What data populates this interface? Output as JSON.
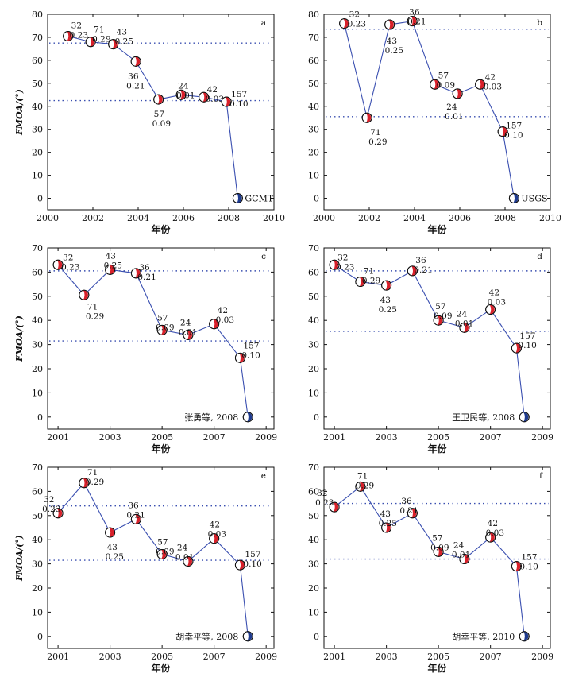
{
  "chart_data": [
    {
      "type": "line",
      "panel_label": "a",
      "source_label": "GCMT",
      "ylabel": "FMOA/(°)",
      "xlabel": "年份",
      "xlim": [
        2000,
        2010
      ],
      "ylim": [
        -5,
        80
      ],
      "xticks": [
        "2000",
        "2002",
        "2004",
        "2006",
        "2008",
        "2010"
      ],
      "yticks": [
        "0",
        "10",
        "20",
        "30",
        "40",
        "50",
        "60",
        "70",
        "80"
      ],
      "x": [
        2000.9,
        2001.9,
        2002.9,
        2003.9,
        2004.9,
        2005.9,
        2006.9,
        2007.9,
        2008.4
      ],
      "y": [
        70.5,
        68.0,
        67.0,
        59.5,
        43.0,
        45.0,
        44.0,
        42.0,
        0
      ],
      "labels_top": [
        "32",
        "71",
        "43",
        "36",
        "57",
        "24",
        "42",
        "157",
        ""
      ],
      "labels_bottom": [
        "0.23",
        "0.29",
        "0.25",
        "0.21",
        "0.09",
        "0.01",
        "0.03",
        "0.10",
        ""
      ],
      "hlines": [
        67.5,
        42.5
      ]
    },
    {
      "type": "line",
      "panel_label": "b",
      "source_label": "USGS",
      "ylabel": "",
      "xlabel": "年份",
      "xlim": [
        2000,
        2010
      ],
      "ylim": [
        -5,
        80
      ],
      "xticks": [
        "2000",
        "2002",
        "2004",
        "2006",
        "2008",
        "2010"
      ],
      "yticks": [
        "0",
        "10",
        "20",
        "30",
        "40",
        "50",
        "60",
        "70",
        "80"
      ],
      "x": [
        2000.9,
        2001.9,
        2002.9,
        2003.9,
        2004.9,
        2005.9,
        2006.9,
        2007.9,
        2008.4
      ],
      "y": [
        76.0,
        35.0,
        75.5,
        77.0,
        49.5,
        45.5,
        49.5,
        29.0,
        0
      ],
      "labels_top": [
        "32",
        "71",
        "43",
        "36",
        "57",
        "24",
        "42",
        "157",
        ""
      ],
      "labels_bottom": [
        "0.23",
        "0.29",
        "0.25",
        "0.21",
        "0.09",
        "0.01",
        "0.03",
        "0.10",
        ""
      ],
      "hlines": [
        73.5,
        35.5
      ]
    },
    {
      "type": "line",
      "panel_label": "c",
      "source_label": "张勇等, 2008",
      "ylabel": "FMOA/(°)",
      "xlabel": "年份",
      "xlim": [
        2000.6,
        2009.3
      ],
      "ylim": [
        -5,
        70
      ],
      "xticks": [
        "2001",
        "2003",
        "2005",
        "2007",
        "2009"
      ],
      "yticks": [
        "0",
        "10",
        "20",
        "30",
        "40",
        "50",
        "60",
        "70"
      ],
      "x": [
        2001,
        2002,
        2003,
        2004,
        2005,
        2006,
        2007,
        2008,
        2008.3
      ],
      "y": [
        63.0,
        50.5,
        61.0,
        59.5,
        36.0,
        34.0,
        38.5,
        24.5,
        0
      ],
      "labels_top": [
        "32",
        "71",
        "43",
        "36",
        "57",
        "24",
        "42",
        "157",
        ""
      ],
      "labels_bottom": [
        "0.23",
        "0.29",
        "0.25",
        "0.21",
        "0.09",
        "0.01",
        "0.03",
        "0.10",
        ""
      ],
      "hlines": [
        60.5,
        31.5
      ]
    },
    {
      "type": "line",
      "panel_label": "d",
      "source_label": "王卫民等, 2008",
      "ylabel": "",
      "xlabel": "年份",
      "xlim": [
        2000.6,
        2009.3
      ],
      "ylim": [
        -5,
        70
      ],
      "xticks": [
        "2001",
        "2003",
        "2005",
        "2007",
        "2009"
      ],
      "yticks": [
        "0",
        "10",
        "20",
        "30",
        "40",
        "50",
        "60",
        "70"
      ],
      "x": [
        2001,
        2002,
        2003,
        2004,
        2005,
        2006,
        2007,
        2008,
        2008.3
      ],
      "y": [
        63.0,
        56.0,
        54.5,
        60.5,
        40.0,
        37.0,
        44.5,
        28.5,
        0
      ],
      "labels_top": [
        "32",
        "71",
        "43",
        "36",
        "57",
        "24",
        "42",
        "157",
        ""
      ],
      "labels_bottom": [
        "0.23",
        "0.29",
        "0.25",
        "0.21",
        "0.09",
        "0.01",
        "0.03",
        "0.10",
        ""
      ],
      "hlines": [
        60.5,
        35.5
      ]
    },
    {
      "type": "line",
      "panel_label": "e",
      "source_label": "胡幸平等, 2008",
      "ylabel": "FMOA/(°)",
      "xlabel": "年份",
      "xlim": [
        2000.6,
        2009.3
      ],
      "ylim": [
        -5,
        70
      ],
      "xticks": [
        "2001",
        "2003",
        "2005",
        "2007",
        "2009"
      ],
      "yticks": [
        "0",
        "10",
        "20",
        "30",
        "40",
        "50",
        "60",
        "70"
      ],
      "x": [
        2001,
        2002,
        2003,
        2004,
        2005,
        2006,
        2007,
        2008,
        2008.3
      ],
      "y": [
        51.0,
        63.5,
        43.0,
        48.5,
        34.0,
        31.0,
        40.5,
        29.5,
        0
      ],
      "labels_top": [
        "32",
        "71",
        "43",
        "36",
        "57",
        "24",
        "42",
        "157",
        ""
      ],
      "labels_bottom": [
        "0.23",
        "0.29",
        "0.25",
        "0.21",
        "0.09",
        "0.01",
        "0.03",
        "0.10",
        ""
      ],
      "hlines": [
        54.0,
        31.5
      ]
    },
    {
      "type": "line",
      "panel_label": "f",
      "source_label": "胡幸平等, 2010",
      "ylabel": "",
      "xlabel": "年份",
      "xlim": [
        2000.6,
        2009.3
      ],
      "ylim": [
        -5,
        70
      ],
      "xticks": [
        "2001",
        "2003",
        "2005",
        "2007",
        "2009"
      ],
      "yticks": [
        "0",
        "10",
        "20",
        "30",
        "40",
        "50",
        "60",
        "70"
      ],
      "x": [
        2001,
        2002,
        2003,
        2004,
        2005,
        2006,
        2007,
        2008,
        2008.3
      ],
      "y": [
        53.5,
        62.0,
        45.0,
        51.0,
        35.0,
        32.0,
        41.0,
        29.0,
        0
      ],
      "labels_top": [
        "32",
        "71",
        "43",
        "36",
        "57",
        "24",
        "42",
        "157",
        ""
      ],
      "labels_bottom": [
        "0.23",
        "0.29",
        "0.25",
        "0.21",
        "0.09",
        "0.01",
        "0.03",
        "0.10",
        ""
      ],
      "hlines": [
        55.0,
        32.0
      ]
    }
  ],
  "colors": {
    "line": "#3a4fb0",
    "dotted": "#3a4fb0",
    "ball_red": "#d8202a",
    "ball_blue": "#1e3a8f",
    "axis": "#111111"
  }
}
